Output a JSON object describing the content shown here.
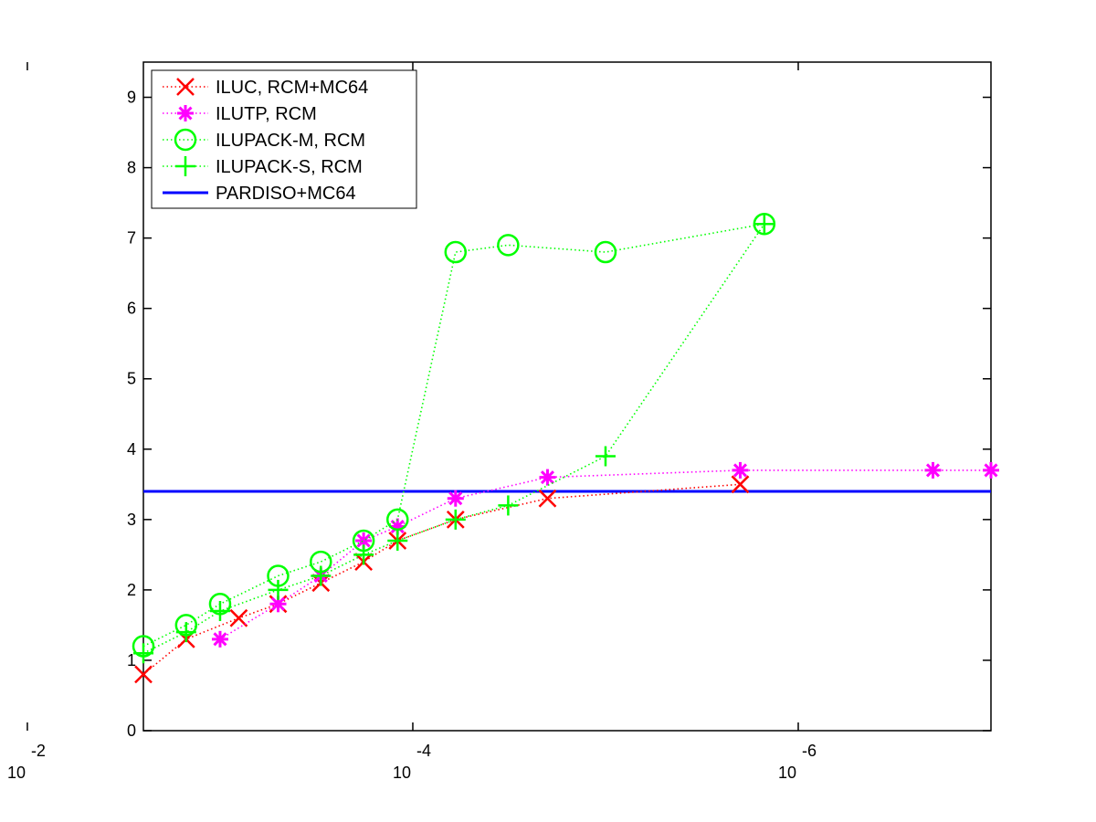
{
  "chart_data": {
    "type": "line",
    "x_scale": "log",
    "x_reversed": true,
    "xlim": [
      0.0025,
      1e-07
    ],
    "ylim": [
      0,
      9.5
    ],
    "grid": false,
    "legend_position": "top-left",
    "y_ticks": [
      0,
      1,
      2,
      3,
      4,
      5,
      6,
      7,
      8,
      9
    ],
    "y_tick_labels": [
      "0",
      "1",
      "2",
      "3",
      "4",
      "5",
      "6",
      "7",
      "8",
      "9"
    ],
    "x_ticks": [
      {
        "value": 0.01,
        "base": "10",
        "exp": "-2"
      },
      {
        "value": 0.0001,
        "base": "10",
        "exp": "-4"
      },
      {
        "value": 1e-06,
        "base": "10",
        "exp": "-6"
      }
    ],
    "series": [
      {
        "name": "ILUC, RCM+MC64",
        "color": "#ff0000",
        "marker": "x",
        "line_style": "dotted",
        "x": [
          0.0025,
          0.0015,
          0.0008,
          0.0005,
          0.0003,
          0.00018,
          0.00012,
          6e-05,
          2e-05,
          2e-06
        ],
        "y": [
          0.8,
          1.3,
          1.6,
          1.8,
          2.1,
          2.4,
          2.7,
          3.0,
          3.3,
          3.5
        ]
      },
      {
        "name": "ILUTP, RCM",
        "color": "#ff00ff",
        "marker": "asterisk",
        "line_style": "dotted",
        "x": [
          0.001,
          0.0005,
          0.0003,
          0.00018,
          0.00012,
          6e-05,
          2e-05,
          2e-06,
          2e-07,
          1e-07
        ],
        "y": [
          1.3,
          1.8,
          2.2,
          2.7,
          2.9,
          3.3,
          3.6,
          3.7,
          3.7,
          3.7
        ]
      },
      {
        "name": "ILUPACK-M, RCM",
        "color": "#00ff00",
        "marker": "circle",
        "line_style": "dotted",
        "x": [
          0.0025,
          0.0015,
          0.001,
          0.0005,
          0.0003,
          0.00018,
          0.00012,
          6e-05,
          3.2e-05,
          1e-05,
          1.5e-06
        ],
        "y": [
          1.2,
          1.5,
          1.8,
          2.2,
          2.4,
          2.7,
          3.0,
          6.8,
          6.9,
          6.8,
          7.2
        ]
      },
      {
        "name": "ILUPACK-S, RCM",
        "color": "#00ff00",
        "marker": "plus",
        "line_style": "dotted",
        "x": [
          0.0025,
          0.0015,
          0.001,
          0.0005,
          0.0003,
          0.00018,
          0.00012,
          6e-05,
          3.2e-05,
          1e-05,
          1.5e-06
        ],
        "y": [
          1.1,
          1.4,
          1.7,
          2.0,
          2.2,
          2.5,
          2.7,
          3.0,
          3.2,
          3.9,
          7.2
        ]
      },
      {
        "name": "PARDISO+MC64",
        "color": "#0000ff",
        "marker": "none",
        "line_style": "solid",
        "x": [
          0.0025,
          1e-07
        ],
        "y": [
          3.4,
          3.4
        ]
      }
    ]
  }
}
